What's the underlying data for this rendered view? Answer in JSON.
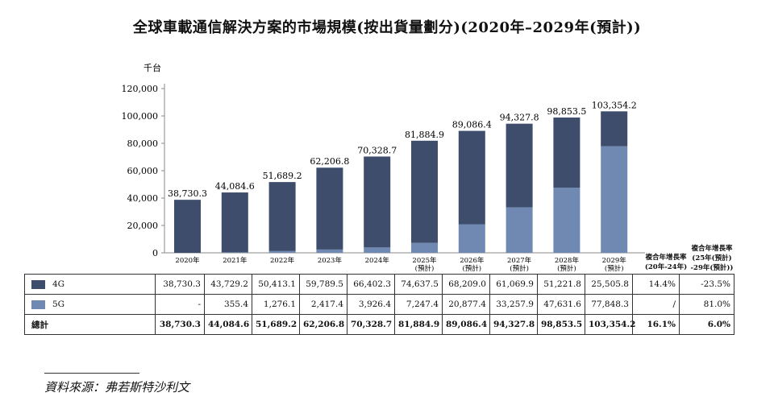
{
  "title": "全球車載通信解決方案的市場規模(按出貨量劃分)(2020年–2029年(預計))",
  "cagr_headers": {
    "historical": [
      "複合年增長率",
      "(20年-24年)"
    ],
    "forecast": [
      "複合年增長率",
      "(25年(預計)",
      "-29年(預計))"
    ]
  },
  "source": "資料來源：弗若斯特沙利文",
  "colors": {
    "4g": "#3d4d6b",
    "5g": "#7089b3",
    "axis": "#888888"
  },
  "chart_data": {
    "type": "bar",
    "stacked": true,
    "ylabel": "千台",
    "ylim": [
      0,
      120000
    ],
    "yticks": [
      "0",
      "20,000",
      "40,000",
      "60,000",
      "80,000",
      "100,000",
      "120,000"
    ],
    "categories": [
      "2020年",
      "2021年",
      "2022年",
      "2023年",
      "2024年",
      "2025年\n(預計)",
      "2026年\n(預計)",
      "2027年\n(預計)",
      "2028年\n(預計)",
      "2029年\n(預計)"
    ],
    "series": [
      {
        "name": "4G",
        "values": [
          38730.3,
          43729.2,
          50413.1,
          59789.5,
          66402.3,
          74637.5,
          68209.0,
          61069.9,
          51221.8,
          25505.8
        ]
      },
      {
        "name": "5G",
        "values": [
          0,
          355.4,
          1276.1,
          2417.4,
          3926.4,
          7247.4,
          20877.4,
          33257.9,
          47631.6,
          77848.3
        ]
      }
    ],
    "totals": [
      38730.3,
      44084.6,
      51689.2,
      62206.8,
      70328.7,
      81884.9,
      89086.4,
      94327.8,
      98853.5,
      103354.2
    ],
    "total_labels": [
      "38,730.3",
      "44,084.6",
      "51,689.2",
      "62,206.8",
      "70,328.7",
      "81,884.9",
      "89,086.4",
      "94,327.8",
      "98,853.5",
      "103,354.2"
    ]
  },
  "table": {
    "rows": [
      {
        "key": "4g",
        "label": "4G",
        "values": [
          "38,730.3",
          "43,729.2",
          "50,413.1",
          "59,789.5",
          "66,402.3",
          "74,637.5",
          "68,209.0",
          "61,069.9",
          "51,221.8",
          "25,505.8"
        ],
        "cagr_hist": "14.4%",
        "cagr_fcst": "-23.5%"
      },
      {
        "key": "5g",
        "label": "5G",
        "values": [
          "-",
          "355.4",
          "1,276.1",
          "2,417.4",
          "3,926.4",
          "7,247.4",
          "20,877.4",
          "33,257.9",
          "47,631.6",
          "77,848.3"
        ],
        "cagr_hist": "/",
        "cagr_fcst": "81.0%"
      },
      {
        "key": "total",
        "label": "總計",
        "values": [
          "38,730.3",
          "44,084.6",
          "51,689.2",
          "62,206.8",
          "70,328.7",
          "81,884.9",
          "89,086.4",
          "94,327.8",
          "98,853.5",
          "103,354.2"
        ],
        "cagr_hist": "16.1%",
        "cagr_fcst": "6.0%"
      }
    ]
  }
}
